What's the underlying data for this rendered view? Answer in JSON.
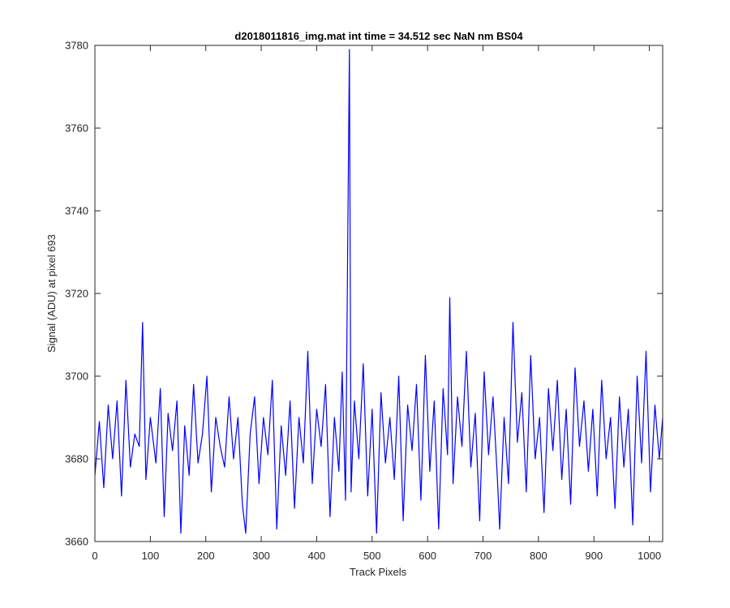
{
  "chart_data": {
    "type": "line",
    "title": "d2018011816_img.mat int time = 34.512 sec  NaN nm BS04",
    "xlabel": "Track Pixels",
    "ylabel": "Signal (ADU) at pixel 693",
    "xlim": [
      0,
      1024
    ],
    "ylim": [
      3660,
      3780
    ],
    "xticks": [
      0,
      100,
      200,
      300,
      400,
      500,
      600,
      700,
      800,
      900,
      1000
    ],
    "yticks": [
      3660,
      3680,
      3700,
      3720,
      3740,
      3760,
      3780
    ],
    "grid": false,
    "colors": {
      "series": "#0000ff",
      "axes": "#262626"
    },
    "series": [
      {
        "x": [
          0,
          8,
          16,
          24,
          32,
          40,
          48,
          56,
          64,
          72,
          80,
          86,
          92,
          100,
          110,
          118,
          125,
          132,
          140,
          148,
          155,
          162,
          170,
          178,
          186,
          194,
          202,
          210,
          218,
          226,
          234,
          242,
          250,
          258,
          266,
          272,
          280,
          288,
          296,
          304,
          312,
          320,
          328,
          336,
          344,
          352,
          360,
          368,
          376,
          384,
          392,
          400,
          408,
          416,
          424,
          432,
          440,
          446,
          452,
          459,
          462,
          468,
          476,
          484,
          492,
          500,
          508,
          516,
          524,
          532,
          540,
          548,
          556,
          564,
          572,
          580,
          588,
          596,
          604,
          612,
          620,
          628,
          636,
          640,
          646,
          654,
          662,
          670,
          678,
          686,
          694,
          702,
          710,
          718,
          726,
          730,
          738,
          746,
          754,
          762,
          770,
          778,
          786,
          794,
          802,
          810,
          818,
          826,
          834,
          842,
          850,
          858,
          866,
          874,
          882,
          890,
          898,
          906,
          914,
          922,
          930,
          938,
          946,
          954,
          962,
          970,
          978,
          986,
          994,
          1002,
          1010,
          1018,
          1024
        ],
        "y": [
          3676,
          3689,
          3673,
          3693,
          3680,
          3694,
          3671,
          3699,
          3678,
          3686,
          3683,
          3713,
          3675,
          3690,
          3679,
          3697,
          3666,
          3691,
          3682,
          3694,
          3662,
          3688,
          3676,
          3698,
          3679,
          3686,
          3700,
          3672,
          3690,
          3683,
          3678,
          3695,
          3680,
          3690,
          3669,
          3662,
          3686,
          3695,
          3674,
          3690,
          3681,
          3699,
          3663,
          3688,
          3676,
          3694,
          3668,
          3690,
          3679,
          3706,
          3674,
          3692,
          3683,
          3698,
          3666,
          3690,
          3677,
          3701,
          3670,
          3779,
          3672,
          3694,
          3680,
          3703,
          3671,
          3692,
          3662,
          3696,
          3679,
          3690,
          3675,
          3700,
          3665,
          3693,
          3682,
          3698,
          3670,
          3705,
          3677,
          3694,
          3663,
          3697,
          3681,
          3719,
          3674,
          3695,
          3683,
          3706,
          3678,
          3691,
          3665,
          3701,
          3681,
          3695,
          3675,
          3663,
          3690,
          3674,
          3713,
          3684,
          3696,
          3672,
          3705,
          3680,
          3690,
          3667,
          3697,
          3682,
          3699,
          3675,
          3692,
          3669,
          3702,
          3683,
          3694,
          3677,
          3692,
          3671,
          3699,
          3680,
          3690,
          3668,
          3695,
          3678,
          3692,
          3664,
          3700,
          3679,
          3706,
          3672,
          3693,
          3680,
          3690
        ]
      }
    ]
  }
}
